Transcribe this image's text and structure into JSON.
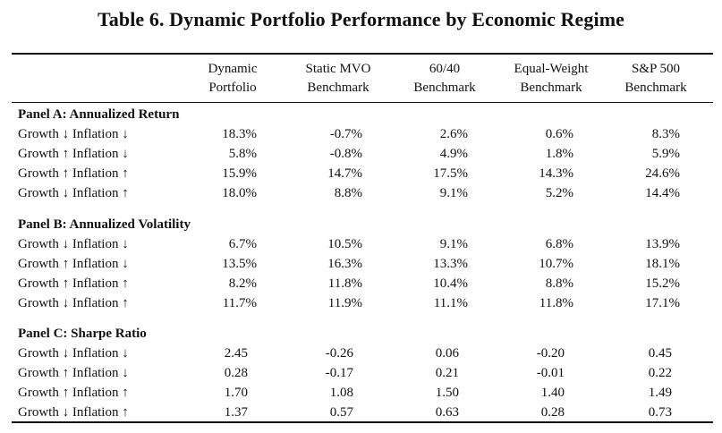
{
  "title": "Table 6. Dynamic Portfolio Performance by Economic Regime",
  "columns": [
    {
      "line1": "Dynamic",
      "line2": "Portfolio"
    },
    {
      "line1": "Static MVO",
      "line2": "Benchmark"
    },
    {
      "line1": "60/40",
      "line2": "Benchmark"
    },
    {
      "line1": "Equal-Weight",
      "line2": "Benchmark"
    },
    {
      "line1": "S&P 500",
      "line2": "Benchmark"
    }
  ],
  "panels": [
    {
      "title": "Panel A: Annualized Return",
      "rows": [
        {
          "label": "Growth ↓ Inflation ↓",
          "values": [
            "18.3%",
            "-0.7%",
            "2.6%",
            "0.6%",
            "8.3%"
          ]
        },
        {
          "label": "Growth ↑ Inflation ↓",
          "values": [
            "5.8%",
            "-0.8%",
            "4.9%",
            "1.8%",
            "5.9%"
          ]
        },
        {
          "label": "Growth ↑ Inflation ↑",
          "values": [
            "15.9%",
            "14.7%",
            "17.5%",
            "14.3%",
            "24.6%"
          ]
        },
        {
          "label": "Growth ↓ Inflation ↑",
          "values": [
            "18.0%",
            "8.8%",
            "9.1%",
            "5.2%",
            "14.4%"
          ]
        }
      ]
    },
    {
      "title": "Panel B: Annualized Volatility",
      "rows": [
        {
          "label": "Growth ↓ Inflation ↓",
          "values": [
            "6.7%",
            "10.5%",
            "9.1%",
            "6.8%",
            "13.9%"
          ]
        },
        {
          "label": "Growth ↑ Inflation ↓",
          "values": [
            "13.5%",
            "16.3%",
            "13.3%",
            "10.7%",
            "18.1%"
          ]
        },
        {
          "label": "Growth ↑ Inflation ↑",
          "values": [
            "8.2%",
            "11.8%",
            "10.4%",
            "8.8%",
            "15.2%"
          ]
        },
        {
          "label": "Growth ↓ Inflation ↑",
          "values": [
            "11.7%",
            "11.9%",
            "11.1%",
            "11.8%",
            "17.1%"
          ]
        }
      ]
    },
    {
      "title": "Panel C: Sharpe Ratio",
      "rows": [
        {
          "label": "Growth ↓ Inflation ↓",
          "values": [
            "2.45",
            "-0.26",
            "0.06",
            "-0.20",
            "0.45"
          ]
        },
        {
          "label": "Growth ↑ Inflation ↓",
          "values": [
            "0.28",
            "-0.17",
            "0.21",
            "-0.01",
            "0.22"
          ]
        },
        {
          "label": "Growth ↑ Inflation ↑",
          "values": [
            "1.70",
            "1.08",
            "1.50",
            "1.40",
            "1.49"
          ]
        },
        {
          "label": "Growth ↓ Inflation ↑",
          "values": [
            "1.37",
            "0.57",
            "0.63",
            "0.28",
            "0.73"
          ]
        }
      ]
    }
  ]
}
